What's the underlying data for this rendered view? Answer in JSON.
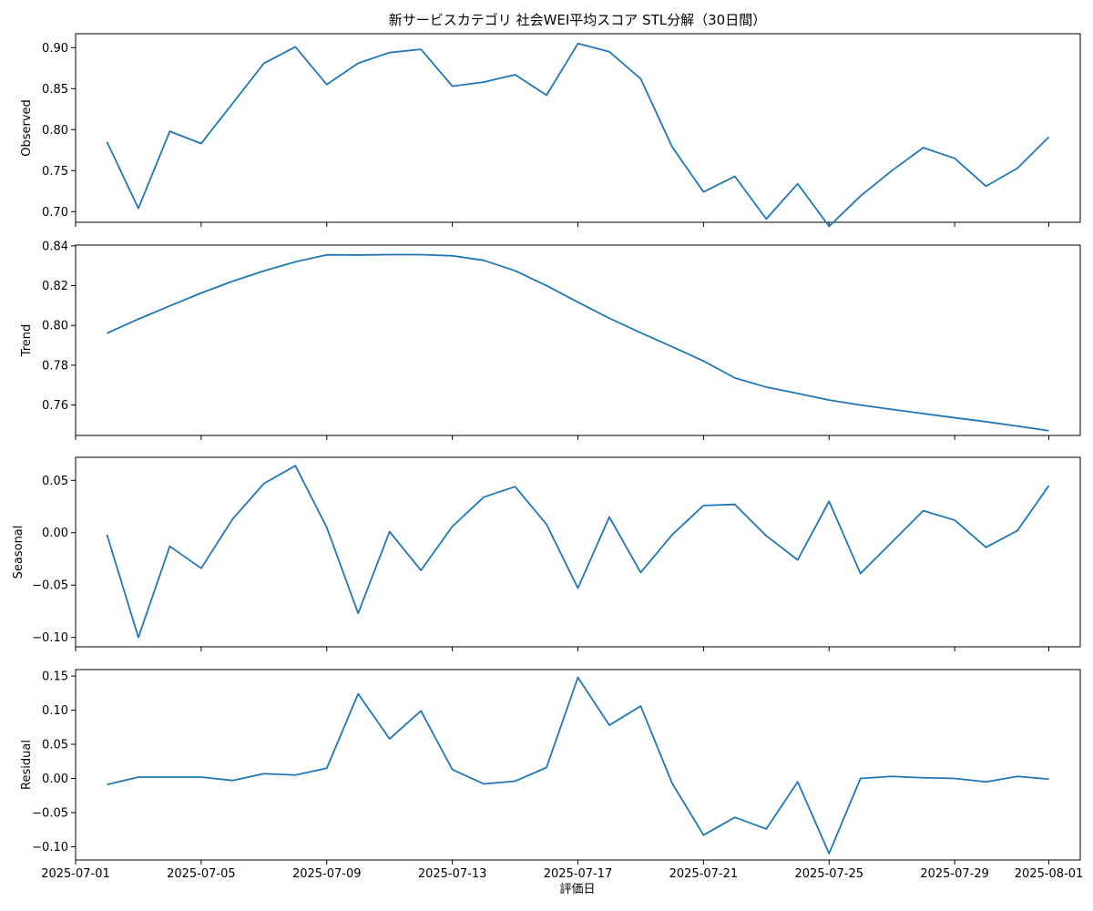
{
  "chart_data": {
    "type": "line",
    "title": "新サービスカテゴリ 社会WEI平均スコア STL分解（30日間）",
    "xlabel": "評価日",
    "x": [
      "2025-07-02",
      "2025-07-03",
      "2025-07-04",
      "2025-07-05",
      "2025-07-06",
      "2025-07-07",
      "2025-07-08",
      "2025-07-09",
      "2025-07-10",
      "2025-07-11",
      "2025-07-12",
      "2025-07-13",
      "2025-07-14",
      "2025-07-15",
      "2025-07-16",
      "2025-07-17",
      "2025-07-18",
      "2025-07-19",
      "2025-07-20",
      "2025-07-21",
      "2025-07-22",
      "2025-07-23",
      "2025-07-24",
      "2025-07-25",
      "2025-07-26",
      "2025-07-27",
      "2025-07-28",
      "2025-07-29",
      "2025-07-30",
      "2025-07-31",
      "2025-08-01"
    ],
    "xlim": [
      "2025-07-01",
      "2025-08-02"
    ],
    "x_ticks": [
      "2025-07-01",
      "2025-07-05",
      "2025-07-09",
      "2025-07-13",
      "2025-07-17",
      "2025-07-21",
      "2025-07-25",
      "2025-07-29",
      "2025-08-01"
    ],
    "panels": [
      {
        "ylabel": "Observed",
        "ylim": [
          0.687,
          0.917
        ],
        "y_ticks": [
          "0.70",
          "0.75",
          "0.80",
          "0.85",
          "0.90"
        ],
        "values": [
          0.785,
          0.704,
          0.798,
          0.783,
          0.832,
          0.881,
          0.901,
          0.855,
          0.881,
          0.894,
          0.898,
          0.853,
          0.858,
          0.867,
          0.842,
          0.905,
          0.895,
          0.862,
          0.779,
          0.724,
          0.743,
          0.691,
          0.734,
          0.682,
          0.719,
          0.75,
          0.778,
          0.765,
          0.731,
          0.753,
          0.791
        ]
      },
      {
        "ylabel": "Trend",
        "ylim": [
          0.7447,
          0.8404
        ],
        "y_ticks": [
          "0.76",
          "0.78",
          "0.80",
          "0.82",
          "0.84"
        ],
        "values": [
          0.7961,
          0.8032,
          0.8098,
          0.8163,
          0.8222,
          0.8274,
          0.832,
          0.8355,
          0.8354,
          0.8356,
          0.8356,
          0.835,
          0.8327,
          0.8275,
          0.82,
          0.8117,
          0.8036,
          0.7963,
          0.7893,
          0.7821,
          0.7736,
          0.769,
          0.7658,
          0.7625,
          0.76,
          0.7578,
          0.7557,
          0.7536,
          0.7516,
          0.7494,
          0.7471
        ]
      },
      {
        "ylabel": "Seasonal",
        "ylim": [
          -0.109,
          0.072
        ],
        "y_ticks": [
          "-0.10",
          "-0.05",
          "0.00",
          "0.05"
        ],
        "values": [
          -0.002,
          -0.1,
          -0.013,
          -0.034,
          0.013,
          0.047,
          0.064,
          0.005,
          -0.077,
          0.001,
          -0.036,
          0.006,
          0.034,
          0.044,
          0.008,
          -0.053,
          0.015,
          -0.038,
          -0.002,
          0.026,
          0.027,
          -0.003,
          -0.026,
          0.03,
          -0.039,
          -0.009,
          0.021,
          0.012,
          -0.014,
          0.002,
          0.045
        ]
      },
      {
        "ylabel": "Residual",
        "ylim": [
          -0.1195,
          0.1595
        ],
        "y_ticks": [
          "-0.10",
          "-0.05",
          "0.00",
          "0.05",
          "0.10",
          "0.15"
        ],
        "values": [
          -0.009,
          0.002,
          0.002,
          0.002,
          -0.003,
          0.007,
          0.005,
          0.015,
          0.124,
          0.058,
          0.099,
          0.013,
          -0.008,
          -0.004,
          0.016,
          0.148,
          0.078,
          0.106,
          -0.007,
          -0.083,
          -0.057,
          -0.074,
          -0.005,
          -0.11,
          0.0,
          0.003,
          0.001,
          0.0,
          -0.005,
          0.003,
          -0.001
        ]
      }
    ],
    "colors": {
      "line": "#1f77b4"
    },
    "grid": false,
    "legend": "none"
  }
}
